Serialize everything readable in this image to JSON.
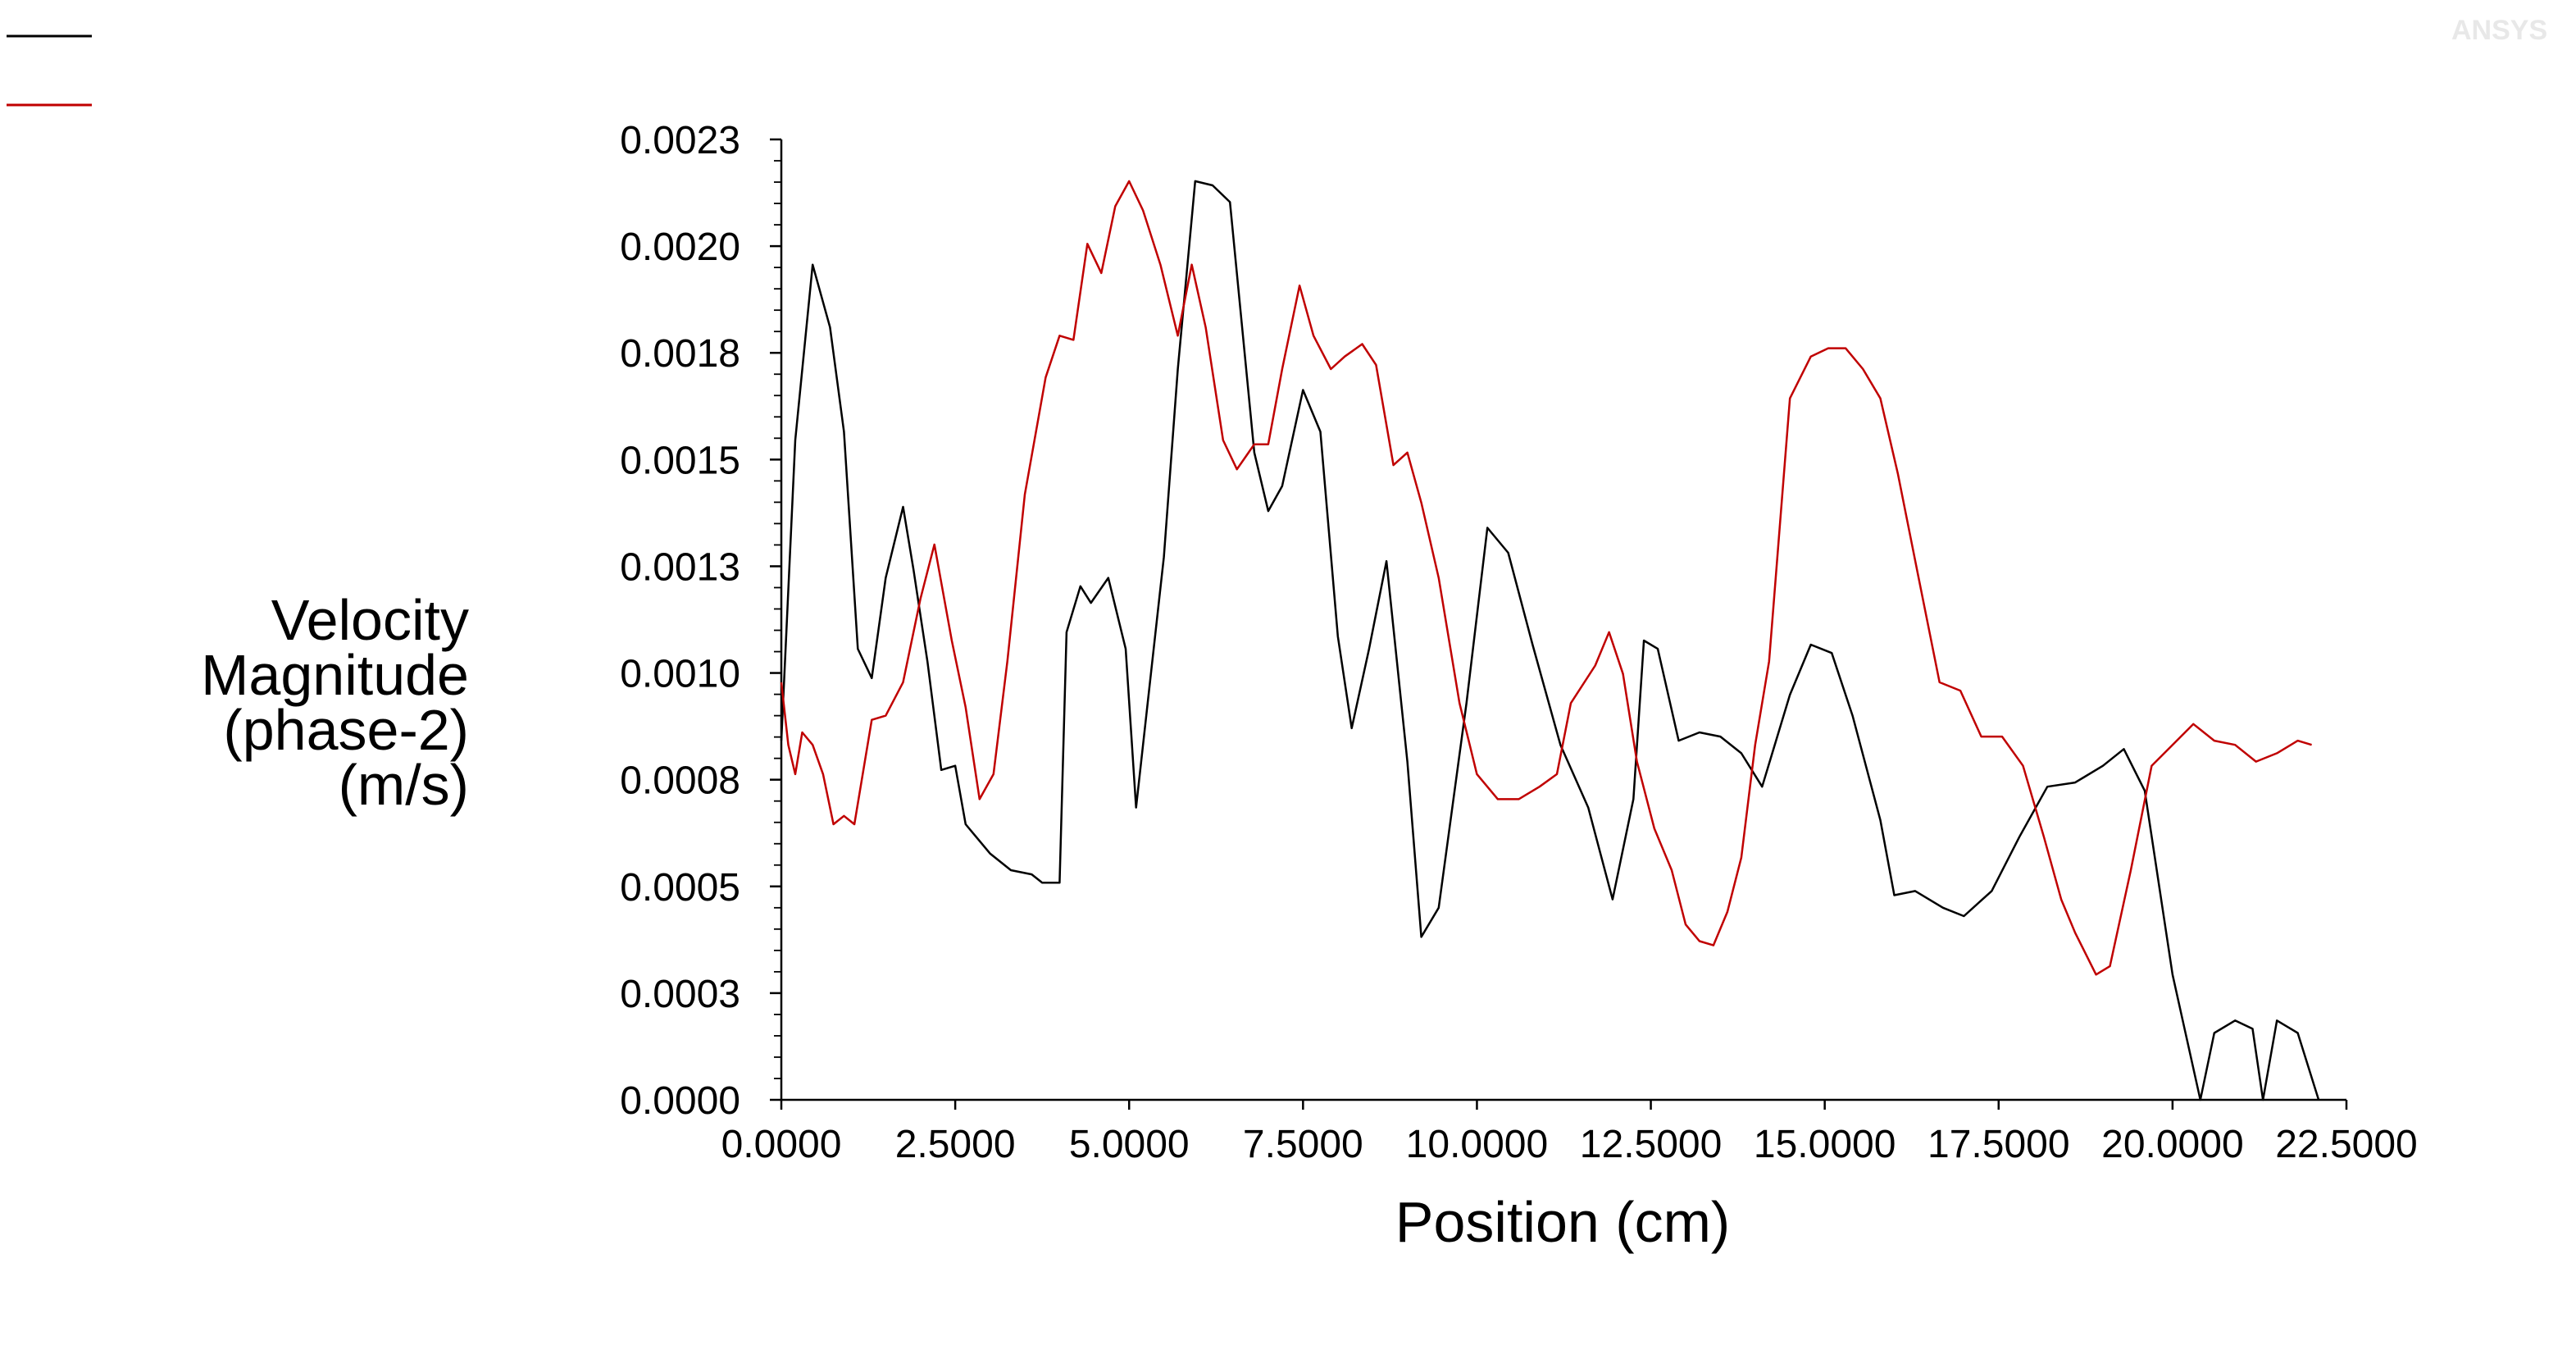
{
  "chart_data": {
    "type": "line",
    "title": "",
    "xlabel": "Position (cm)",
    "ylabel_lines": [
      "Velocity",
      "Magnitude",
      "(phase-2)",
      "(m/s)"
    ],
    "xlim": [
      0,
      22.5
    ],
    "ylim": [
      0,
      0.0023
    ],
    "x_ticks": [
      "0.0000",
      "2.5000",
      "5.0000",
      "7.5000",
      "10.0000",
      "12.5000",
      "15.0000",
      "17.5000",
      "20.0000",
      "22.5000"
    ],
    "y_ticks": [
      "0.0000",
      "0.0003",
      "0.0005",
      "0.0008",
      "0.0010",
      "0.0013",
      "0.0015",
      "0.0018",
      "0.0020",
      "0.0023"
    ],
    "grid": false,
    "legend": "top-left (line swatches only, no names visible)",
    "logo": "ANSYS",
    "series": [
      {
        "color": "#000000",
        "points": [
          [
            0.0,
            0.00086
          ],
          [
            0.2,
            0.00158
          ],
          [
            0.45,
            0.002
          ],
          [
            0.7,
            0.00185
          ],
          [
            0.9,
            0.0016
          ],
          [
            1.1,
            0.00108
          ],
          [
            1.3,
            0.00101
          ],
          [
            1.5,
            0.00125
          ],
          [
            1.75,
            0.00142
          ],
          [
            1.9,
            0.00127
          ],
          [
            2.1,
            0.00105
          ],
          [
            2.3,
            0.00079
          ],
          [
            2.5,
            0.0008
          ],
          [
            2.65,
            0.00066
          ],
          [
            3.0,
            0.00059
          ],
          [
            3.3,
            0.00055
          ],
          [
            3.6,
            0.00054
          ],
          [
            3.75,
            0.00052
          ],
          [
            4.0,
            0.00052
          ],
          [
            4.1,
            0.00112
          ],
          [
            4.3,
            0.00123
          ],
          [
            4.45,
            0.00119
          ],
          [
            4.7,
            0.00125
          ],
          [
            4.95,
            0.00108
          ],
          [
            5.1,
            0.0007
          ],
          [
            5.5,
            0.0013
          ],
          [
            5.7,
            0.00175
          ],
          [
            5.95,
            0.0022
          ],
          [
            6.2,
            0.00219
          ],
          [
            6.45,
            0.00215
          ],
          [
            6.8,
            0.00155
          ],
          [
            7.0,
            0.00141
          ],
          [
            7.2,
            0.00147
          ],
          [
            7.5,
            0.0017
          ],
          [
            7.75,
            0.0016
          ],
          [
            8.0,
            0.00111
          ],
          [
            8.2,
            0.00089
          ],
          [
            8.45,
            0.00108
          ],
          [
            8.7,
            0.00129
          ],
          [
            9.0,
            0.00081
          ],
          [
            9.2,
            0.00039
          ],
          [
            9.45,
            0.00046
          ],
          [
            9.85,
            0.00095
          ],
          [
            10.15,
            0.00137
          ],
          [
            10.45,
            0.00131
          ],
          [
            10.8,
            0.00109
          ],
          [
            11.2,
            0.00085
          ],
          [
            11.6,
            0.0007
          ],
          [
            11.95,
            0.00048
          ],
          [
            12.25,
            0.00072
          ],
          [
            12.4,
            0.0011
          ],
          [
            12.6,
            0.00108
          ],
          [
            12.9,
            0.00086
          ],
          [
            13.2,
            0.00088
          ],
          [
            13.5,
            0.00087
          ],
          [
            13.8,
            0.00083
          ],
          [
            14.1,
            0.00075
          ],
          [
            14.5,
            0.00097
          ],
          [
            14.8,
            0.00109
          ],
          [
            15.1,
            0.00107
          ],
          [
            15.4,
            0.00092
          ],
          [
            15.8,
            0.00067
          ],
          [
            16.0,
            0.00049
          ],
          [
            16.3,
            0.0005
          ],
          [
            16.7,
            0.00046
          ],
          [
            17.0,
            0.00044
          ],
          [
            17.4,
            0.0005
          ],
          [
            17.8,
            0.00063
          ],
          [
            18.2,
            0.00075
          ],
          [
            18.6,
            0.00076
          ],
          [
            19.0,
            0.0008
          ],
          [
            19.3,
            0.00084
          ],
          [
            19.6,
            0.00074
          ],
          [
            20.0,
            0.0003
          ],
          [
            20.4,
            0.0
          ],
          [
            20.6,
            0.00016
          ],
          [
            20.9,
            0.00019
          ],
          [
            21.15,
            0.00017
          ],
          [
            21.3,
            0.0
          ],
          [
            21.5,
            0.00019
          ],
          [
            21.8,
            0.00016
          ],
          [
            22.1,
            0.0
          ]
        ]
      },
      {
        "color": "#c00000",
        "points": [
          [
            0.0,
            0.001
          ],
          [
            0.1,
            0.00085
          ],
          [
            0.2,
            0.00078
          ],
          [
            0.3,
            0.00088
          ],
          [
            0.45,
            0.00085
          ],
          [
            0.6,
            0.00078
          ],
          [
            0.75,
            0.00066
          ],
          [
            0.9,
            0.00068
          ],
          [
            1.05,
            0.00066
          ],
          [
            1.3,
            0.00091
          ],
          [
            1.5,
            0.00092
          ],
          [
            1.75,
            0.001
          ],
          [
            2.0,
            0.0012
          ],
          [
            2.2,
            0.00133
          ],
          [
            2.45,
            0.0011
          ],
          [
            2.65,
            0.00094
          ],
          [
            2.85,
            0.00072
          ],
          [
            3.05,
            0.00078
          ],
          [
            3.25,
            0.00105
          ],
          [
            3.5,
            0.00145
          ],
          [
            3.8,
            0.00173
          ],
          [
            4.0,
            0.00183
          ],
          [
            4.2,
            0.00182
          ],
          [
            4.4,
            0.00205
          ],
          [
            4.6,
            0.00198
          ],
          [
            4.8,
            0.00214
          ],
          [
            5.0,
            0.0022
          ],
          [
            5.2,
            0.00213
          ],
          [
            5.45,
            0.002
          ],
          [
            5.7,
            0.00183
          ],
          [
            5.9,
            0.002
          ],
          [
            6.1,
            0.00185
          ],
          [
            6.35,
            0.00158
          ],
          [
            6.55,
            0.00151
          ],
          [
            6.8,
            0.00157
          ],
          [
            7.0,
            0.00157
          ],
          [
            7.2,
            0.00175
          ],
          [
            7.45,
            0.00195
          ],
          [
            7.65,
            0.00183
          ],
          [
            7.9,
            0.00175
          ],
          [
            8.1,
            0.00178
          ],
          [
            8.35,
            0.00181
          ],
          [
            8.55,
            0.00176
          ],
          [
            8.8,
            0.00152
          ],
          [
            9.0,
            0.00155
          ],
          [
            9.2,
            0.00143
          ],
          [
            9.45,
            0.00125
          ],
          [
            9.75,
            0.00095
          ],
          [
            10.0,
            0.00078
          ],
          [
            10.3,
            0.00072
          ],
          [
            10.6,
            0.00072
          ],
          [
            10.9,
            0.00075
          ],
          [
            11.15,
            0.00078
          ],
          [
            11.35,
            0.00095
          ],
          [
            11.7,
            0.00104
          ],
          [
            11.9,
            0.00112
          ],
          [
            12.1,
            0.00102
          ],
          [
            12.3,
            0.00081
          ],
          [
            12.55,
            0.00065
          ],
          [
            12.8,
            0.00055
          ],
          [
            13.0,
            0.00042
          ],
          [
            13.2,
            0.00038
          ],
          [
            13.4,
            0.00037
          ],
          [
            13.6,
            0.00045
          ],
          [
            13.8,
            0.00058
          ],
          [
            14.0,
            0.00085
          ],
          [
            14.2,
            0.00105
          ],
          [
            14.5,
            0.00168
          ],
          [
            14.8,
            0.00178
          ],
          [
            15.05,
            0.0018
          ],
          [
            15.3,
            0.0018
          ],
          [
            15.55,
            0.00175
          ],
          [
            15.8,
            0.00168
          ],
          [
            16.05,
            0.0015
          ],
          [
            16.35,
            0.00125
          ],
          [
            16.65,
            0.001
          ],
          [
            16.95,
            0.00098
          ],
          [
            17.25,
            0.00087
          ],
          [
            17.55,
            0.00087
          ],
          [
            17.85,
            0.0008
          ],
          [
            18.15,
            0.00063
          ],
          [
            18.4,
            0.00048
          ],
          [
            18.6,
            0.0004
          ],
          [
            18.9,
            0.0003
          ],
          [
            19.1,
            0.00032
          ],
          [
            19.4,
            0.00055
          ],
          [
            19.7,
            0.0008
          ],
          [
            20.0,
            0.00085
          ],
          [
            20.3,
            0.0009
          ],
          [
            20.6,
            0.00086
          ],
          [
            20.9,
            0.00085
          ],
          [
            21.2,
            0.00081
          ],
          [
            21.5,
            0.00083
          ],
          [
            21.8,
            0.00086
          ],
          [
            22.0,
            0.00085
          ]
        ]
      }
    ]
  }
}
